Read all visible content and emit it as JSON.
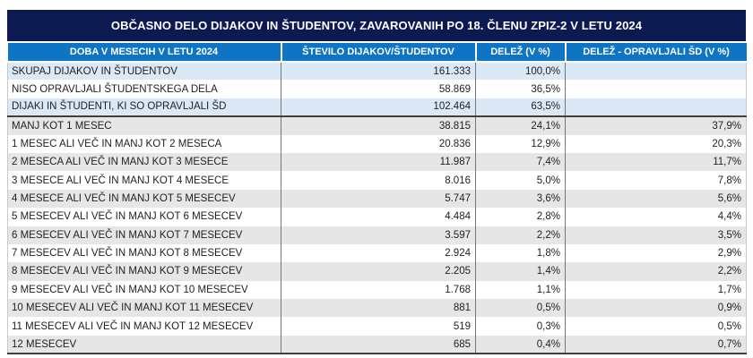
{
  "chart_data": {
    "type": "table",
    "title": "OBČASNO DELO DIJAKOV IN ŠTUDENTOV, ZAVAROVANIH PO 18. ČLENU ZPIZ-2 V LETU 2024",
    "columns": [
      "DOBA V MESECIH V LETU 2024",
      "ŠTEVILO DIJAKOV/ŠTUDENTOV",
      "DELEŽ (V %)",
      "DELEŽ - OPRAVLJALI ŠD (V %)"
    ],
    "rows": [
      {
        "label": "SKUPAJ DIJAKOV IN ŠTUDENTOV",
        "count": "161.333",
        "share": "100,0%",
        "share_sd": ""
      },
      {
        "label": "NISO OPRAVLJALI ŠTUDENTSKEGA DELA",
        "count": "58.869",
        "share": "36,5%",
        "share_sd": ""
      },
      {
        "label": "DIJAKI IN ŠTUDENTI, KI SO OPRAVLJALI ŠD",
        "count": "102.464",
        "share": "63,5%",
        "share_sd": ""
      },
      {
        "label": "MANJ KOT 1 MESEC",
        "count": "38.815",
        "share": "24,1%",
        "share_sd": "37,9%"
      },
      {
        "label": "1 MESEC ALI VEČ IN MANJ KOT 2 MESECA",
        "count": "20.836",
        "share": "12,9%",
        "share_sd": "20,3%"
      },
      {
        "label": "2 MESECA ALI VEČ IN MANJ KOT 3 MESECE",
        "count": "11.987",
        "share": "7,4%",
        "share_sd": "11,7%"
      },
      {
        "label": "3 MESECE ALI VEČ IN MANJ KOT 4 MESECE",
        "count": "8.016",
        "share": "5,0%",
        "share_sd": "7,8%"
      },
      {
        "label": "4 MESECE ALI VEČ IN MANJ KOT 5 MESECEV",
        "count": "5.747",
        "share": "3,6%",
        "share_sd": "5,6%"
      },
      {
        "label": "5 MESECEV ALI VEČ IN MANJ KOT 6 MESECEV",
        "count": "4.484",
        "share": "2,8%",
        "share_sd": "4,4%"
      },
      {
        "label": "6 MESECEV ALI VEČ IN MANJ KOT 7 MESECEV",
        "count": "3.597",
        "share": "2,2%",
        "share_sd": "3,5%"
      },
      {
        "label": "7 MESECEV ALI VEČ IN MANJ KOT 8 MESECEV",
        "count": "2.924",
        "share": "1,8%",
        "share_sd": "2,9%"
      },
      {
        "label": "8 MESECEV ALI VEČ IN MANJ KOT 9 MESECEV",
        "count": "2.205",
        "share": "1,4%",
        "share_sd": "2,2%"
      },
      {
        "label": "9 MESECEV ALI VEČ IN MANJ KOT 10 MESECEV",
        "count": "1.768",
        "share": "1,1%",
        "share_sd": "1,7%"
      },
      {
        "label": "10 MESECEV ALI VEČ IN MANJ KOT 11 MESECEV",
        "count": "881",
        "share": "0,5%",
        "share_sd": "0,9%"
      },
      {
        "label": "11 MESECEV ALI VEČ IN MANJ KOT 12 MESECEV",
        "count": "519",
        "share": "0,3%",
        "share_sd": "0,5%"
      },
      {
        "label": "12 MESECEV",
        "count": "685",
        "share": "0,4%",
        "share_sd": "0,7%"
      }
    ],
    "numeric": {
      "counts": [
        161333,
        58869,
        102464,
        38815,
        20836,
        11987,
        8016,
        5747,
        4484,
        3597,
        2924,
        2205,
        1768,
        881,
        519,
        685
      ],
      "share_pct": [
        100.0,
        36.5,
        63.5,
        24.1,
        12.9,
        7.4,
        5.0,
        3.6,
        2.8,
        2.2,
        1.8,
        1.4,
        1.1,
        0.5,
        0.3,
        0.4
      ],
      "share_sd_pct": [
        null,
        null,
        null,
        37.9,
        20.3,
        11.7,
        7.8,
        5.6,
        4.4,
        3.5,
        2.9,
        2.2,
        1.7,
        0.9,
        0.5,
        0.7
      ]
    },
    "colors": {
      "title_bg": "#0d1a52",
      "header_bg": "#0e74c4",
      "row_highlight_blue": "#dbe9f6",
      "row_gray": "#e7e6e6",
      "heavy_border": "#3f3f3f"
    },
    "layout": {
      "legend": "none",
      "grid": "table-borders",
      "first_three_rows": "summary rows (blue highlight), remaining rows alternate gray/white"
    }
  }
}
